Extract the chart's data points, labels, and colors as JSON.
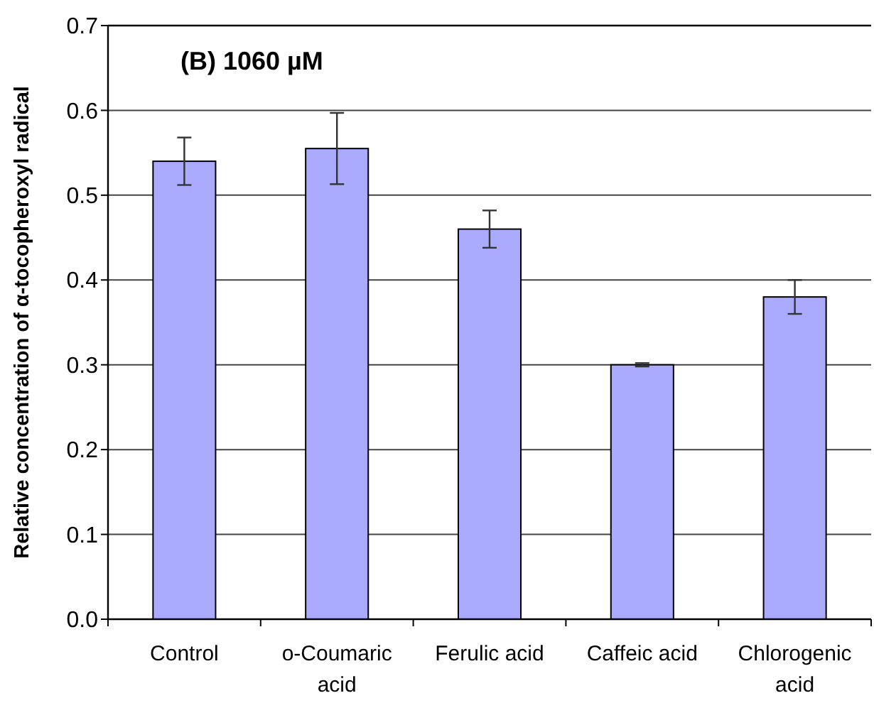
{
  "chart_data": {
    "type": "bar",
    "title": "(B) 1060 µM",
    "ylabel": "Relative concentration of α-tocopheroxyl radical",
    "categories": [
      "Control",
      "o-Coumaric acid",
      "Ferulic acid",
      "Caffeic acid",
      "Chlorogenic acid"
    ],
    "values": [
      0.54,
      0.555,
      0.46,
      0.3,
      0.38
    ],
    "errors": [
      0.028,
      0.042,
      0.022,
      0.002,
      0.02
    ],
    "color": "#aaaaff",
    "ylim": [
      0,
      0.7
    ],
    "yticks": [
      {
        "value": 0,
        "label": "0.0"
      },
      0.1,
      0.2,
      0.3,
      0.4,
      0.5,
      0.6,
      0.7
    ],
    "grid": "y"
  }
}
